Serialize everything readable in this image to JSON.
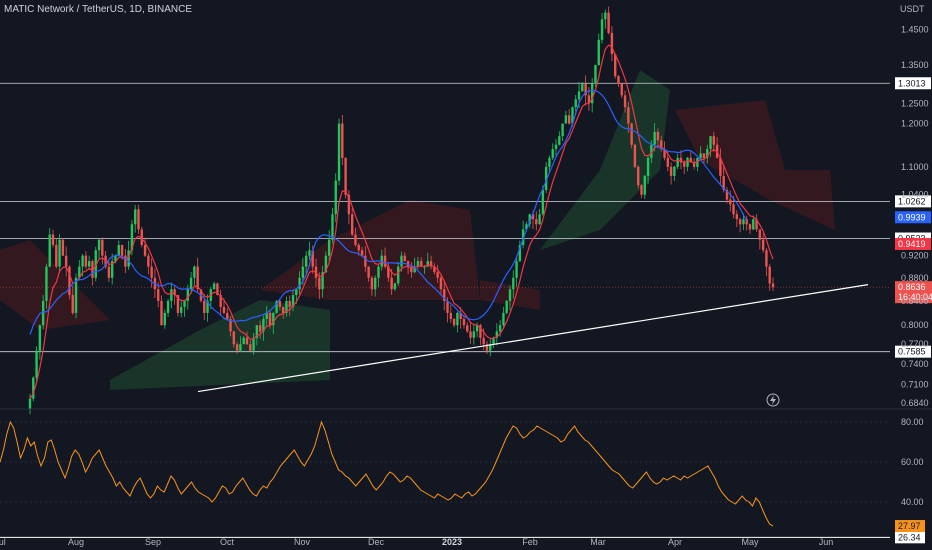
{
  "header": {
    "symbol_title": "MATIC Network / TetherUS, 1D, BINANCE",
    "currency": "USDT"
  },
  "colors": {
    "background": "#131722",
    "up": "#26a69a",
    "up_bright": "#22c55e",
    "down": "#ef5350",
    "ema_fast": "#f23645",
    "ema_slow": "#2962ff",
    "rsi": "#f7931a",
    "level_line": "#d1d4dc",
    "cloud_green": "#1b3a2a",
    "cloud_red": "#3a1a1e"
  },
  "chart_data": [
    {
      "type": "candlestick",
      "title": "MATIC Network / TetherUS, 1D, BINANCE",
      "ylabel": "USDT",
      "scale": "log",
      "ylim": [
        0.68,
        1.52
      ],
      "x_ticks": [
        "Jul",
        "Aug",
        "Sep",
        "Oct",
        "Nov",
        "Dec",
        "2023",
        "Feb",
        "Mar",
        "Apr",
        "May",
        "Jun"
      ],
      "y_ticks": [
        1.45,
        1.35,
        1.25,
        1.2,
        1.1,
        1.04,
        0.92,
        0.88,
        0.84,
        0.8,
        0.77,
        0.74,
        0.71,
        0.684
      ],
      "y_tick_labels": [
        "1.4500",
        "1.3500",
        "1.2500",
        "1.2000",
        "1.1000",
        "1.0400",
        "0.9200",
        "0.8800",
        "0.8400",
        "0.8000",
        "0.7700",
        "0.7400",
        "0.7100",
        "0.6840"
      ],
      "closes": [
        0.69,
        0.72,
        0.76,
        0.8,
        0.84,
        0.9,
        0.96,
        0.94,
        0.9,
        0.95,
        0.92,
        0.9,
        0.85,
        0.82,
        0.88,
        0.9,
        0.92,
        0.9,
        0.91,
        0.88,
        0.93,
        0.95,
        0.92,
        0.9,
        0.88,
        0.91,
        0.92,
        0.94,
        0.92,
        0.9,
        0.93,
        0.98,
        1.01,
        0.97,
        0.94,
        0.92,
        0.9,
        0.88,
        0.86,
        0.84,
        0.8,
        0.82,
        0.84,
        0.86,
        0.85,
        0.82,
        0.83,
        0.84,
        0.86,
        0.88,
        0.9,
        0.86,
        0.84,
        0.82,
        0.84,
        0.86,
        0.87,
        0.85,
        0.83,
        0.82,
        0.81,
        0.79,
        0.77,
        0.76,
        0.77,
        0.78,
        0.77,
        0.76,
        0.78,
        0.8,
        0.79,
        0.81,
        0.82,
        0.8,
        0.82,
        0.84,
        0.83,
        0.82,
        0.84,
        0.83,
        0.85,
        0.86,
        0.88,
        0.9,
        0.92,
        0.93,
        0.9,
        0.88,
        0.86,
        0.89,
        0.92,
        0.95,
        1.0,
        1.07,
        1.2,
        1.12,
        1.04,
        1.0,
        0.96,
        0.94,
        0.93,
        0.92,
        0.9,
        0.88,
        0.86,
        0.88,
        0.9,
        0.92,
        0.9,
        0.88,
        0.86,
        0.87,
        0.9,
        0.92,
        0.91,
        0.9,
        0.89,
        0.9,
        0.91,
        0.9,
        0.9,
        0.91,
        0.9,
        0.89,
        0.88,
        0.86,
        0.84,
        0.82,
        0.81,
        0.8,
        0.82,
        0.81,
        0.8,
        0.79,
        0.78,
        0.79,
        0.8,
        0.78,
        0.77,
        0.76,
        0.77,
        0.78,
        0.79,
        0.8,
        0.82,
        0.84,
        0.86,
        0.88,
        0.91,
        0.94,
        0.97,
        0.98,
        1.0,
        0.99,
        0.98,
        1.0,
        1.05,
        1.1,
        1.12,
        1.14,
        1.15,
        1.17,
        1.2,
        1.22,
        1.2,
        1.24,
        1.26,
        1.28,
        1.3,
        1.27,
        1.25,
        1.3,
        1.35,
        1.42,
        1.48,
        1.5,
        1.44,
        1.38,
        1.32,
        1.3,
        1.27,
        1.24,
        1.2,
        1.15,
        1.1,
        1.06,
        1.04,
        1.08,
        1.12,
        1.15,
        1.18,
        1.16,
        1.14,
        1.12,
        1.1,
        1.08,
        1.1,
        1.12,
        1.11,
        1.1,
        1.12,
        1.11,
        1.1,
        1.12,
        1.13,
        1.12,
        1.14,
        1.17,
        1.15,
        1.12,
        1.08,
        1.05,
        1.03,
        1.02,
        1.0,
        0.99,
        0.98,
        0.99,
        0.98,
        0.97,
        0.99,
        0.97,
        0.95,
        0.93,
        0.9,
        0.87,
        0.8636
      ],
      "last_price": "0.8636",
      "last_price_countdown": "16:40:04",
      "ema_fast_last": "0.9419",
      "ema_slow_last": "0.9939",
      "horizontal_levels": [
        "1.3013",
        "1.0262",
        "0.9523",
        "0.7585"
      ],
      "trendline": {
        "start_label": "Sep",
        "start": 0.7,
        "end": 0.868
      }
    },
    {
      "type": "line",
      "title": "",
      "scale": "linear",
      "ylim": [
        25,
        85
      ],
      "y_ticks": [
        80,
        60,
        40
      ],
      "y_tick_labels": [
        "80.00",
        "60.00",
        "40.00"
      ],
      "series": [
        {
          "values": [
            60,
            66,
            74,
            80,
            77,
            70,
            62,
            66,
            72,
            68,
            70,
            63,
            58,
            62,
            70,
            71,
            66,
            60,
            56,
            52,
            57,
            63,
            66,
            64,
            60,
            55,
            58,
            62,
            64,
            66,
            62,
            58,
            55,
            52,
            48,
            50,
            47,
            45,
            43,
            47,
            50,
            52,
            48,
            44,
            42,
            44,
            48,
            46,
            45,
            49,
            53,
            51,
            47,
            44,
            46,
            48,
            50,
            47,
            45,
            44,
            43,
            42,
            40,
            42,
            45,
            48,
            47,
            44,
            45,
            48,
            50,
            52,
            49,
            46,
            44,
            43,
            46,
            48,
            47,
            50,
            52,
            55,
            58,
            60,
            62,
            64,
            66,
            63,
            60,
            58,
            61,
            64,
            68,
            74,
            80,
            76,
            70,
            64,
            60,
            56,
            55,
            53,
            52,
            50,
            48,
            50,
            52,
            54,
            51,
            48,
            46,
            48,
            50,
            53,
            55,
            54,
            52,
            50,
            51,
            53,
            52,
            50,
            48,
            46,
            45,
            44,
            43,
            42,
            44,
            43,
            42,
            41,
            42,
            44,
            43,
            42,
            44,
            45,
            43,
            44,
            46,
            48,
            50,
            53,
            56,
            60,
            64,
            68,
            72,
            75,
            78,
            77,
            74,
            72,
            73,
            75,
            76,
            78,
            77,
            76,
            75,
            74,
            73,
            72,
            70,
            71,
            74,
            76,
            78,
            75,
            73,
            71,
            70,
            68,
            66,
            64,
            62,
            60,
            58,
            56,
            55,
            54,
            52,
            50,
            48,
            47,
            49,
            51,
            53,
            55,
            52,
            50,
            49,
            50,
            52,
            51,
            52,
            53,
            52,
            51,
            53,
            52,
            53,
            54,
            55,
            56,
            57,
            58,
            55,
            52,
            48,
            45,
            43,
            41,
            40,
            39,
            41,
            43,
            41,
            40,
            38,
            42,
            40,
            36,
            32,
            29,
            27.97
          ],
          "last_label": "27.97"
        }
      ],
      "horizontal_levels": [
        "26.34"
      ]
    }
  ]
}
